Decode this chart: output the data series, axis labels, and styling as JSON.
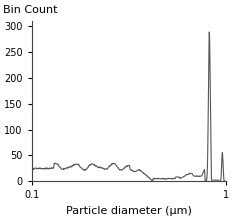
{
  "title": "Bin Count",
  "xlabel": "Particle diameter (μm)",
  "xlim": [
    0.1,
    1.0
  ],
  "ylim": [
    0,
    310
  ],
  "yticks": [
    0,
    50,
    100,
    150,
    200,
    250,
    300
  ],
  "xticks": [
    0.1,
    1.0
  ],
  "xticklabels": [
    "0.1",
    "1"
  ],
  "line_color": "#555555",
  "line_width": 0.8,
  "bg_color": "#ffffff",
  "title_fontsize": 8,
  "label_fontsize": 8,
  "tick_fontsize": 7
}
